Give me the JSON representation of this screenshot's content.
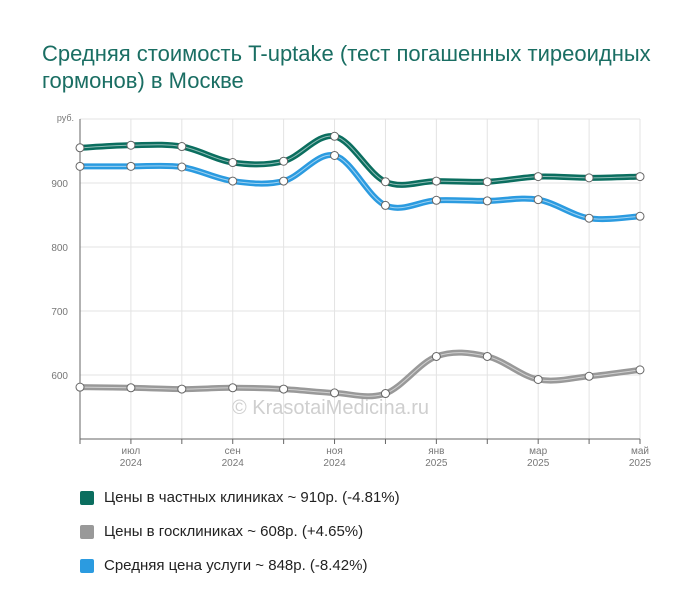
{
  "chart_data": {
    "type": "line",
    "title": "Средняя стоимость T-uptake (тест погашенных тиреоидных гормонов) в Москве",
    "y_unit": "руб.",
    "ylim": [
      500,
      1000
    ],
    "y_ticks": [
      "600",
      "700",
      "800",
      "900"
    ],
    "grid": true,
    "x_tick_labels": [
      {
        "month": "июл",
        "year": "2024",
        "x": 1
      },
      {
        "month": "сен",
        "year": "2024",
        "x": 3
      },
      {
        "month": "ноя",
        "year": "2024",
        "x": 5
      },
      {
        "month": "янв",
        "year": "2025",
        "x": 7
      },
      {
        "month": "мар",
        "year": "2025",
        "x": 9
      },
      {
        "month": "май",
        "year": "2025",
        "x": 11
      }
    ],
    "x": [
      0,
      1,
      2,
      3,
      4,
      5,
      6,
      7,
      8,
      9,
      10,
      11
    ],
    "series": [
      {
        "name": "Цены в частных клиниках ~ 910р. (-4.81%)",
        "color": "#0b6e5f",
        "values": [
          955,
          959,
          957,
          932,
          934,
          973,
          902,
          903,
          902,
          910,
          908,
          910
        ]
      },
      {
        "name": "Цены в госклиниках ~ 608р. (+4.65%)",
        "color": "#999999",
        "values": [
          581,
          580,
          578,
          580,
          578,
          572,
          571,
          629,
          629,
          593,
          598,
          608
        ]
      },
      {
        "name": "Средняя цена услуги ~ 848р. (-8.42%)",
        "color": "#2b9be0",
        "values": [
          926,
          926,
          925,
          903,
          903,
          943,
          865,
          873,
          872,
          874,
          845,
          848
        ]
      }
    ],
    "legend_position": "bottom"
  },
  "watermark": "© KrasotaiMedicina.ru"
}
